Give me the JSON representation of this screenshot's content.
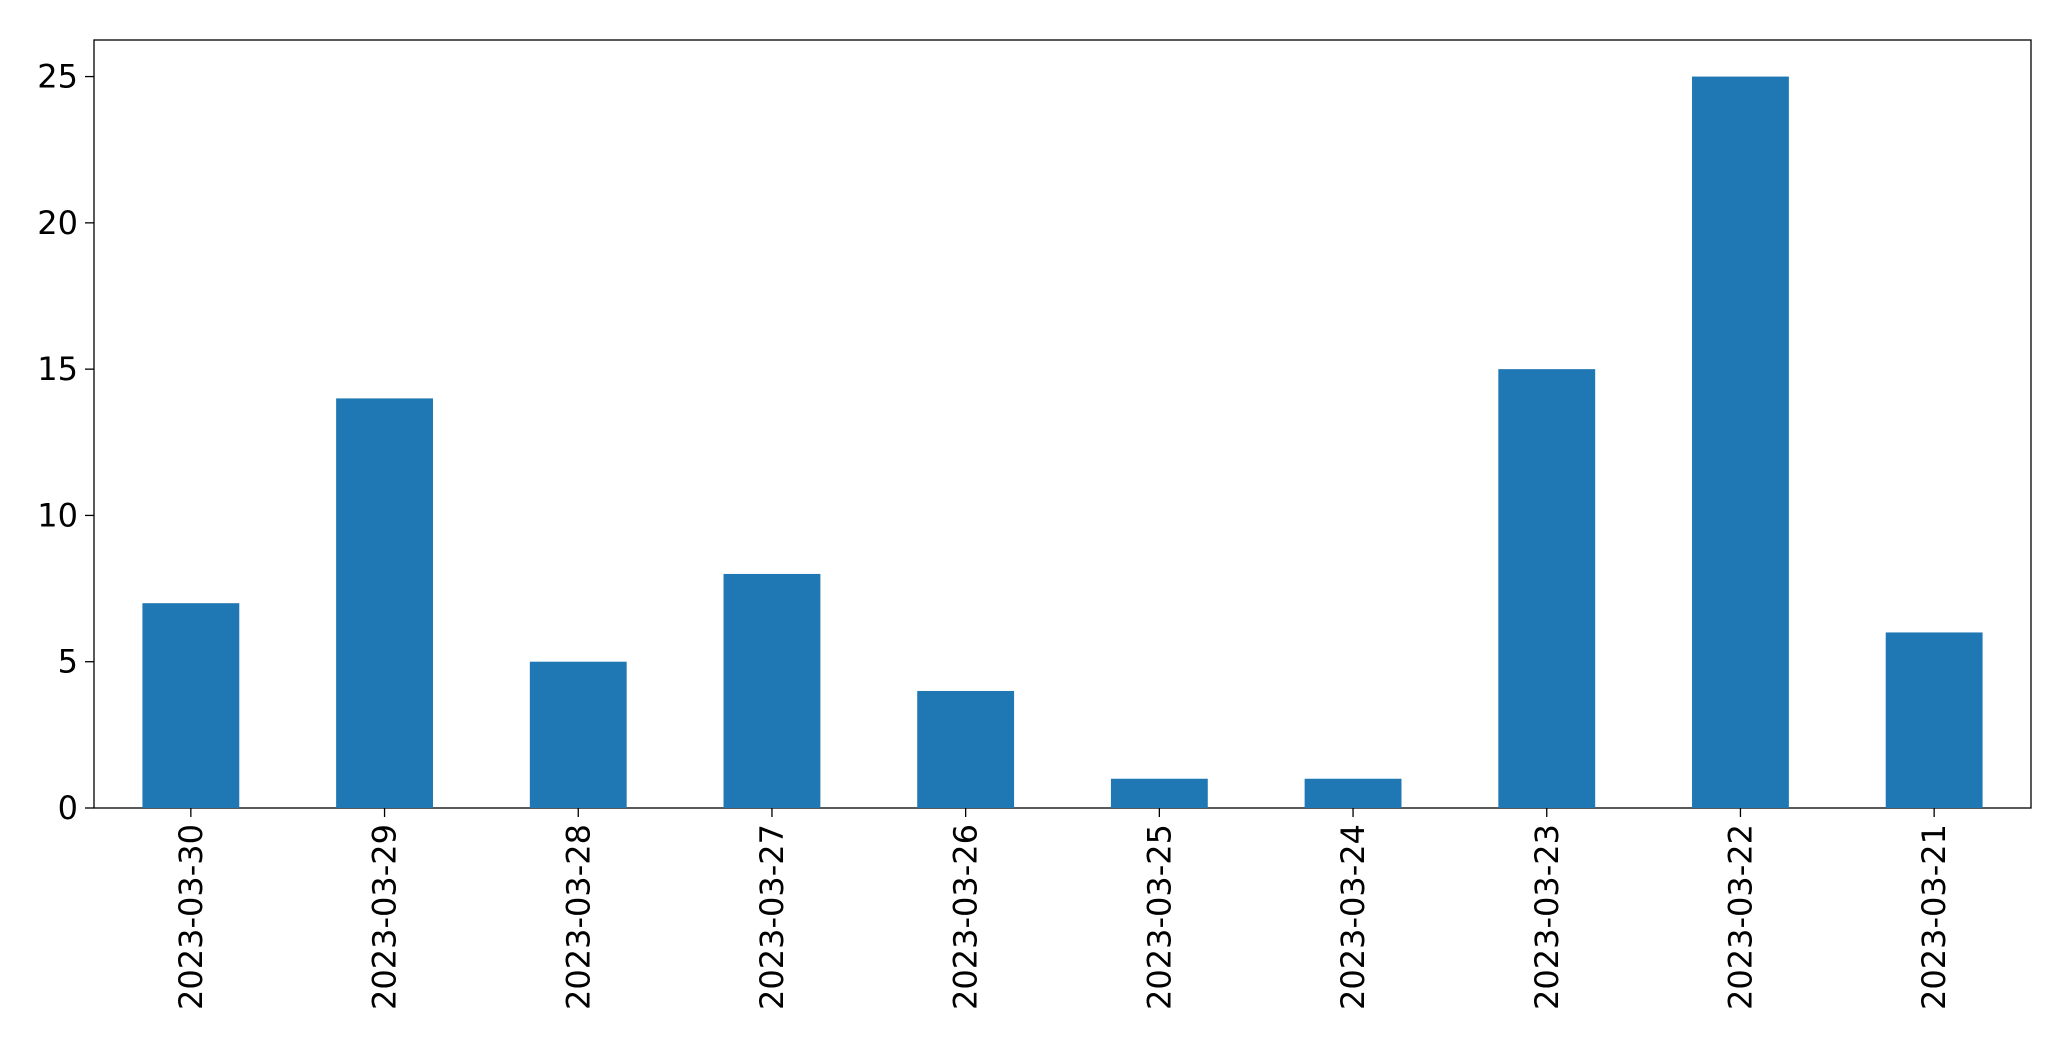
{
  "chart_data": {
    "type": "bar",
    "categories": [
      "2023-03-30",
      "2023-03-29",
      "2023-03-28",
      "2023-03-27",
      "2023-03-26",
      "2023-03-25",
      "2023-03-24",
      "2023-03-23",
      "2023-03-22",
      "2023-03-21"
    ],
    "values": [
      7,
      14,
      5,
      8,
      4,
      1,
      1,
      15,
      25,
      6
    ],
    "color": "#1f77b4",
    "ylim": [
      0,
      26.25
    ],
    "yticks": [
      0,
      5,
      10,
      15,
      20,
      25
    ],
    "grid": false
  }
}
